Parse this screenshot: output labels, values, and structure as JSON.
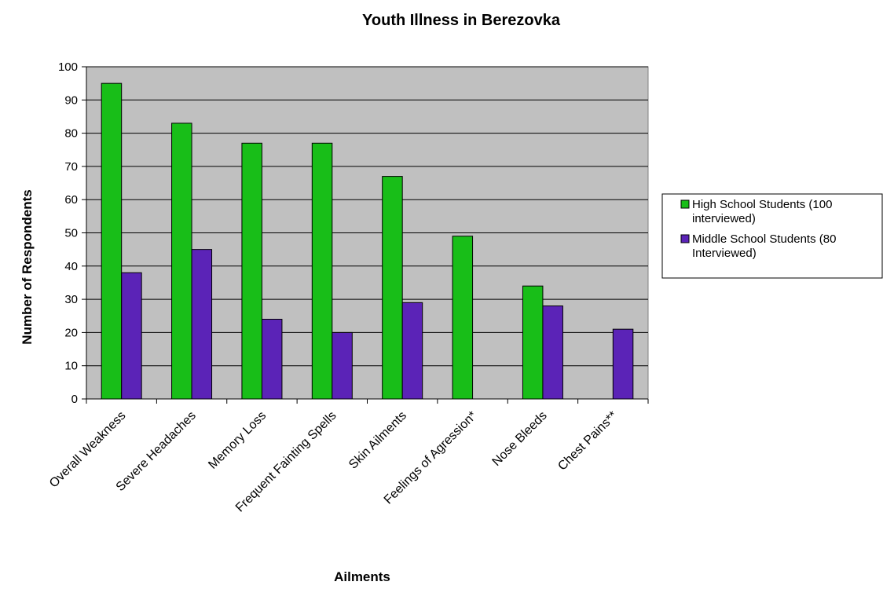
{
  "chart_data": {
    "type": "bar",
    "title": "Youth Illness in Berezovka",
    "xlabel": "Ailments",
    "ylabel": "Number of Respondents",
    "ylim": [
      0,
      100
    ],
    "yticks": [
      0,
      10,
      20,
      30,
      40,
      50,
      60,
      70,
      80,
      90,
      100
    ],
    "grid": true,
    "legend_position": "right",
    "categories": [
      "Overall Weakness",
      "Severe Headaches",
      "Memory Loss",
      "Frequent Fainting Spells",
      "Skin Ailments",
      "Feelings of Agression*",
      "Nose Bleeds",
      "Chest Pains**"
    ],
    "series": [
      {
        "name": "High School Students (100 interviewed)",
        "legend_lines": [
          "High School Students (100",
          "interviewed)"
        ],
        "color": "#18BE18",
        "values": [
          95,
          83,
          77,
          77,
          67,
          49,
          34,
          null
        ]
      },
      {
        "name": "Middle School Students (80 Interviewed)",
        "legend_lines": [
          "Middle School Students (80",
          "Interviewed)"
        ],
        "color": "#5B23B7",
        "values": [
          38,
          45,
          24,
          20,
          29,
          null,
          28,
          21
        ]
      }
    ],
    "plot_background": "#C0C0C0"
  }
}
